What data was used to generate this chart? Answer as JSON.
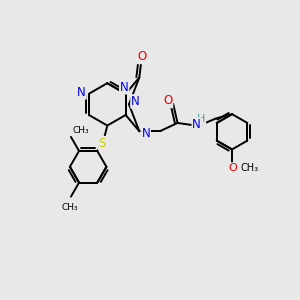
{
  "background_color": "#e8e8e8",
  "atom_colors": {
    "N": "#0000ee",
    "O": "#ee0000",
    "S": "#cccc00",
    "NH": "#4a9e9e",
    "C": "#000000"
  },
  "figsize": [
    3.0,
    3.0
  ],
  "dpi": 100,
  "xlim": [
    0,
    10
  ],
  "ylim": [
    0,
    10
  ]
}
